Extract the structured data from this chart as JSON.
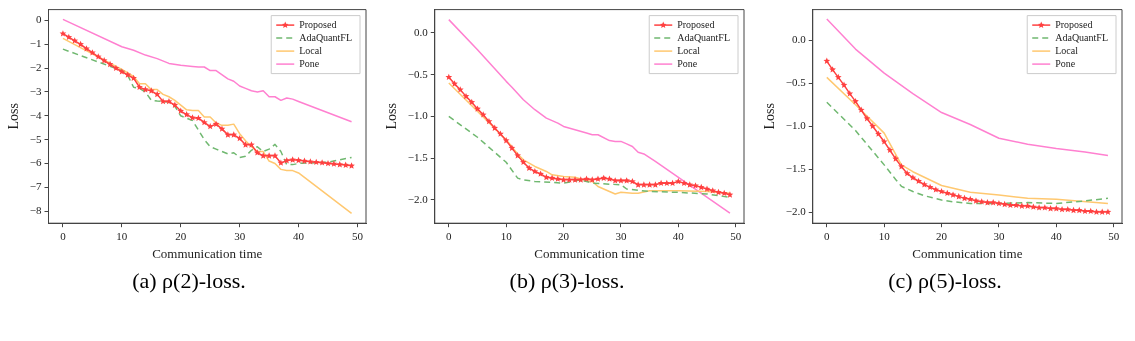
{
  "chart_data": [
    {
      "type": "line",
      "title": "(a) ρ(2)-loss.",
      "xlabel": "Communication time",
      "ylabel": "Loss",
      "legend": "top right",
      "grid": false,
      "x": [
        0,
        1,
        2,
        3,
        4,
        5,
        6,
        7,
        8,
        9,
        10,
        11,
        12,
        13,
        14,
        15,
        16,
        17,
        18,
        19,
        20,
        21,
        22,
        23,
        24,
        25,
        26,
        27,
        28,
        29,
        30,
        31,
        32,
        33,
        34,
        35,
        36,
        37,
        38,
        39,
        40,
        41,
        42,
        43,
        44,
        45,
        46,
        47,
        48,
        49
      ],
      "xlim": [
        -2.45,
        51.45
      ],
      "xticks": [
        0,
        10,
        20,
        30,
        40,
        50
      ],
      "ylim": [
        -8.51,
        0.46
      ],
      "yticks": [
        {
          "value": 0,
          "label": "0"
        },
        {
          "value": -1,
          "label": "−1"
        },
        {
          "value": -2,
          "label": "−2"
        },
        {
          "value": -3,
          "label": "−3"
        },
        {
          "value": -4,
          "label": "−4"
        },
        {
          "value": -5,
          "label": "−5"
        },
        {
          "value": -6,
          "label": "−6"
        },
        {
          "value": -7,
          "label": "−7"
        },
        {
          "value": -8,
          "label": "−8"
        }
      ],
      "series": [
        {
          "name": "Proposed",
          "color": "#ff4040",
          "marker": "star",
          "line_style": "solid",
          "values": [
            -0.55,
            -0.7,
            -0.85,
            -1.0,
            -1.18,
            -1.35,
            -1.52,
            -1.68,
            -1.84,
            -2.0,
            -2.15,
            -2.28,
            -2.42,
            -2.8,
            -2.9,
            -2.95,
            -3.1,
            -3.4,
            -3.4,
            -3.55,
            -3.8,
            -3.95,
            -4.08,
            -4.1,
            -4.28,
            -4.45,
            -4.35,
            -4.55,
            -4.8,
            -4.8,
            -4.95,
            -5.22,
            -5.22,
            -5.55,
            -5.68,
            -5.68,
            -5.68,
            -5.98,
            -5.88,
            -5.85,
            -5.87,
            -5.9,
            -5.93,
            -5.95,
            -5.97,
            -6.0,
            -6.02,
            -6.05,
            -6.07,
            -6.1
          ]
        },
        {
          "name": "AdaQuantFL",
          "color": "#70b870",
          "marker": "none",
          "line_style": "dashed",
          "x": [
            0,
            10,
            11,
            12,
            13,
            14,
            15,
            16,
            17,
            18,
            19,
            20,
            22,
            23,
            24,
            25,
            26,
            28,
            29,
            30,
            31,
            32,
            33,
            34,
            35,
            36,
            37,
            38,
            39,
            40,
            45,
            49
          ],
          "values": [
            -1.2,
            -2.1,
            -2.3,
            -2.8,
            -2.85,
            -3.0,
            -3.35,
            -3.38,
            -3.4,
            -3.42,
            -3.6,
            -4.0,
            -4.2,
            -4.6,
            -5.0,
            -5.3,
            -5.4,
            -5.6,
            -5.55,
            -5.75,
            -5.7,
            -5.45,
            -5.3,
            -5.5,
            -5.4,
            -5.2,
            -5.5,
            -6.05,
            -6.05,
            -6.0,
            -5.95,
            -5.75
          ]
        },
        {
          "name": "Local",
          "color": "#ffc870",
          "marker": "none",
          "line_style": "solid",
          "x": [
            0,
            10,
            12,
            13,
            14,
            15,
            16,
            17,
            18,
            19,
            20,
            21,
            22,
            23,
            24,
            25,
            26,
            27,
            28,
            29,
            30,
            31,
            32,
            33,
            34,
            35,
            36,
            37,
            38,
            39,
            40,
            49
          ],
          "values": [
            -0.75,
            -2.05,
            -2.35,
            -2.65,
            -2.65,
            -2.9,
            -2.9,
            -3.1,
            -3.2,
            -3.35,
            -3.55,
            -3.75,
            -3.78,
            -3.78,
            -4.05,
            -4.05,
            -4.3,
            -4.4,
            -4.4,
            -4.35,
            -4.75,
            -5.05,
            -5.3,
            -5.5,
            -5.5,
            -5.9,
            -6.0,
            -6.25,
            -6.3,
            -6.3,
            -6.4,
            -8.1
          ]
        },
        {
          "name": "Pone",
          "color": "#ff80d0",
          "marker": "none",
          "line_style": "solid",
          "x": [
            0,
            10,
            12,
            14,
            16,
            18,
            20,
            22,
            23,
            24,
            25,
            26,
            28,
            29,
            30,
            31,
            32,
            33,
            34,
            35,
            36,
            37,
            38,
            39,
            40,
            49
          ],
          "values": [
            0.05,
            -1.1,
            -1.25,
            -1.45,
            -1.6,
            -1.8,
            -1.88,
            -1.93,
            -1.95,
            -1.95,
            -2.1,
            -2.1,
            -2.45,
            -2.55,
            -2.75,
            -2.85,
            -2.95,
            -3.0,
            -2.95,
            -3.2,
            -3.2,
            -3.35,
            -3.25,
            -3.3,
            -3.4,
            -4.25
          ]
        }
      ]
    },
    {
      "type": "line",
      "title": "(b) ρ(3)-loss.",
      "xlabel": "Communication time",
      "ylabel": "Loss",
      "legend": "top right",
      "grid": false,
      "x": [
        0,
        1,
        2,
        3,
        4,
        5,
        6,
        7,
        8,
        9,
        10,
        11,
        12,
        13,
        14,
        15,
        16,
        17,
        18,
        19,
        20,
        21,
        22,
        23,
        24,
        25,
        26,
        27,
        28,
        29,
        30,
        31,
        32,
        33,
        34,
        35,
        36,
        37,
        38,
        39,
        40,
        41,
        42,
        43,
        44,
        45,
        46,
        47,
        48,
        49
      ],
      "xlim": [
        -2.45,
        51.45
      ],
      "xticks": [
        0,
        10,
        20,
        30,
        40,
        50
      ],
      "ylim": [
        -2.28,
        0.28
      ],
      "yticks": [
        {
          "value": 0,
          "label": "0.0"
        },
        {
          "value": -0.5,
          "label": "−0.5"
        },
        {
          "value": -1,
          "label": "−1.0"
        },
        {
          "value": -1.5,
          "label": "−1.5"
        },
        {
          "value": -2,
          "label": "−2.0"
        }
      ],
      "series": [
        {
          "name": "Proposed",
          "color": "#ff4040",
          "marker": "star",
          "line_style": "solid",
          "values": [
            -0.53,
            -0.61,
            -0.68,
            -0.76,
            -0.83,
            -0.91,
            -0.98,
            -1.06,
            -1.14,
            -1.21,
            -1.29,
            -1.38,
            -1.47,
            -1.55,
            -1.62,
            -1.66,
            -1.69,
            -1.73,
            -1.74,
            -1.75,
            -1.76,
            -1.76,
            -1.76,
            -1.76,
            -1.75,
            -1.76,
            -1.75,
            -1.74,
            -1.75,
            -1.77,
            -1.77,
            -1.77,
            -1.78,
            -1.82,
            -1.82,
            -1.82,
            -1.82,
            -1.8,
            -1.8,
            -1.8,
            -1.78,
            -1.8,
            -1.82,
            -1.83,
            -1.85,
            -1.87,
            -1.89,
            -1.91,
            -1.92,
            -1.94
          ]
        },
        {
          "name": "AdaQuantFL",
          "color": "#70b870",
          "marker": "none",
          "line_style": "dashed",
          "x": [
            0,
            5,
            10,
            12,
            13,
            15,
            20,
            23,
            25,
            30,
            31,
            35,
            40,
            45,
            49
          ],
          "values": [
            -1.0,
            -1.25,
            -1.55,
            -1.74,
            -1.76,
            -1.78,
            -1.8,
            -1.76,
            -1.8,
            -1.82,
            -1.87,
            -1.9,
            -1.91,
            -1.93,
            -1.97
          ]
        },
        {
          "name": "Local",
          "color": "#ffc870",
          "marker": "none",
          "line_style": "solid",
          "x": [
            0,
            10,
            12,
            13,
            15,
            17,
            18,
            20,
            22,
            24,
            25,
            26,
            28,
            29,
            30,
            32,
            33,
            35,
            40,
            45,
            49
          ],
          "values": [
            -0.6,
            -1.28,
            -1.45,
            -1.52,
            -1.6,
            -1.66,
            -1.7,
            -1.72,
            -1.73,
            -1.77,
            -1.78,
            -1.84,
            -1.9,
            -1.93,
            -1.91,
            -1.92,
            -1.92,
            -1.89,
            -1.89,
            -1.9,
            -1.92
          ]
        },
        {
          "name": "Pone",
          "color": "#ff80d0",
          "marker": "none",
          "line_style": "solid",
          "x": [
            0,
            5,
            10,
            11,
            13,
            15,
            17,
            19,
            20,
            22,
            24,
            25,
            26,
            28,
            29,
            30,
            31,
            32,
            33,
            34,
            36,
            49
          ],
          "values": [
            0.16,
            -0.2,
            -0.58,
            -0.65,
            -0.8,
            -0.92,
            -1.02,
            -1.08,
            -1.12,
            -1.16,
            -1.2,
            -1.22,
            -1.22,
            -1.29,
            -1.3,
            -1.3,
            -1.33,
            -1.36,
            -1.43,
            -1.45,
            -1.54,
            -2.16
          ]
        }
      ]
    },
    {
      "type": "line",
      "title": "(c) ρ(5)-loss.",
      "xlabel": "Communication time",
      "ylabel": "Loss",
      "legend": "top right",
      "grid": false,
      "x": [
        0,
        1,
        2,
        3,
        4,
        5,
        6,
        7,
        8,
        9,
        10,
        11,
        12,
        13,
        14,
        15,
        16,
        17,
        18,
        19,
        20,
        21,
        22,
        23,
        24,
        25,
        26,
        27,
        28,
        29,
        30,
        31,
        32,
        33,
        34,
        35,
        36,
        37,
        38,
        39,
        40,
        41,
        42,
        43,
        44,
        45,
        46,
        47,
        48,
        49
      ],
      "xlim": [
        -2.45,
        51.45
      ],
      "xticks": [
        0,
        10,
        20,
        30,
        40,
        50
      ],
      "ylim": [
        -2.13,
        0.36
      ],
      "yticks": [
        {
          "value": 0,
          "label": "0.0"
        },
        {
          "value": -0.5,
          "label": "−0.5"
        },
        {
          "value": -1,
          "label": "−1.0"
        },
        {
          "value": -1.5,
          "label": "−1.5"
        },
        {
          "value": -2,
          "label": "−2.0"
        }
      ],
      "series": [
        {
          "name": "Proposed",
          "color": "#ff4040",
          "marker": "star",
          "line_style": "solid",
          "values": [
            -0.24,
            -0.34,
            -0.43,
            -0.52,
            -0.62,
            -0.71,
            -0.81,
            -0.91,
            -1.0,
            -1.09,
            -1.18,
            -1.28,
            -1.38,
            -1.47,
            -1.55,
            -1.6,
            -1.64,
            -1.68,
            -1.71,
            -1.74,
            -1.76,
            -1.78,
            -1.8,
            -1.82,
            -1.84,
            -1.85,
            -1.87,
            -1.88,
            -1.89,
            -1.89,
            -1.9,
            -1.91,
            -1.92,
            -1.92,
            -1.93,
            -1.93,
            -1.94,
            -1.95,
            -1.95,
            -1.96,
            -1.96,
            -1.97,
            -1.97,
            -1.98,
            -1.98,
            -1.99,
            -1.99,
            -2.0,
            -2.0,
            -2.0
          ]
        },
        {
          "name": "AdaQuantFL",
          "color": "#70b870",
          "marker": "none",
          "line_style": "dashed",
          "x": [
            0,
            5,
            10,
            12,
            13,
            15,
            17,
            20,
            22,
            25,
            30,
            35,
            40,
            45,
            49
          ],
          "values": [
            -0.72,
            -1.05,
            -1.45,
            -1.62,
            -1.7,
            -1.76,
            -1.81,
            -1.86,
            -1.88,
            -1.9,
            -1.9,
            -1.89,
            -1.9,
            -1.87,
            -1.84
          ]
        },
        {
          "name": "Local",
          "color": "#ffc870",
          "marker": "none",
          "line_style": "solid",
          "x": [
            0,
            5,
            10,
            13,
            15,
            20,
            25,
            30,
            35,
            40,
            49
          ],
          "values": [
            -0.43,
            -0.75,
            -1.08,
            -1.45,
            -1.53,
            -1.69,
            -1.77,
            -1.8,
            -1.84,
            -1.85,
            -1.9
          ]
        },
        {
          "name": "Pone",
          "color": "#ff80d0",
          "marker": "none",
          "line_style": "solid",
          "x": [
            0,
            5,
            10,
            15,
            20,
            25,
            30,
            35,
            40,
            45,
            49
          ],
          "values": [
            0.25,
            -0.1,
            -0.38,
            -0.62,
            -0.84,
            -0.98,
            -1.14,
            -1.21,
            -1.26,
            -1.3,
            -1.34
          ]
        }
      ]
    }
  ]
}
